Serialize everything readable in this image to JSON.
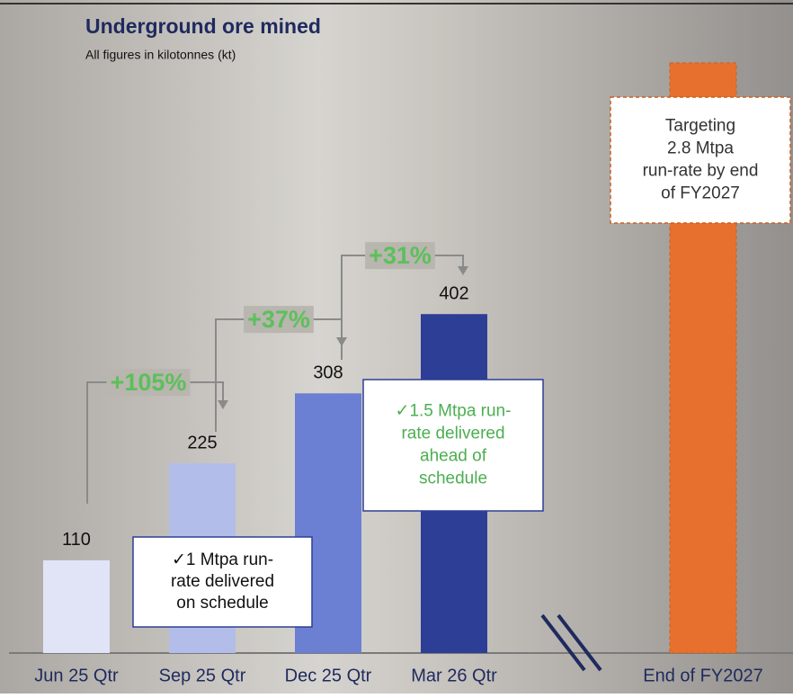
{
  "chart_data": {
    "type": "bar",
    "title": "Underground ore mined",
    "subtitle": "All figures in kilotonnes (kt)",
    "categories": [
      "Jun 25 Qtr",
      "Sep 25 Qtr",
      "Dec 25 Qtr",
      "Mar 26 Qtr",
      "End of FY2027"
    ],
    "values": [
      110,
      225,
      308,
      402,
      700
    ],
    "value_labels": [
      "110",
      "225",
      "308",
      "402",
      null
    ],
    "colors": [
      "#e1e4f6",
      "#b3bde9",
      "#6b80d3",
      "#2d3e96",
      "#e8702f"
    ],
    "ylim": [
      0,
      750
    ],
    "growth_annotations": [
      "+105%",
      "+37%",
      "+31%"
    ],
    "notes": [
      {
        "lines": [
          "✓1 Mtpa run-",
          "rate delivered",
          "on schedule"
        ]
      },
      {
        "lines": [
          "✓1.5 Mtpa run-",
          "rate delivered",
          "ahead of",
          "schedule"
        ]
      },
      {
        "lines": [
          "Targeting",
          "2.8 Mtpa",
          "run-rate by end",
          "of FY2027"
        ]
      }
    ]
  }
}
